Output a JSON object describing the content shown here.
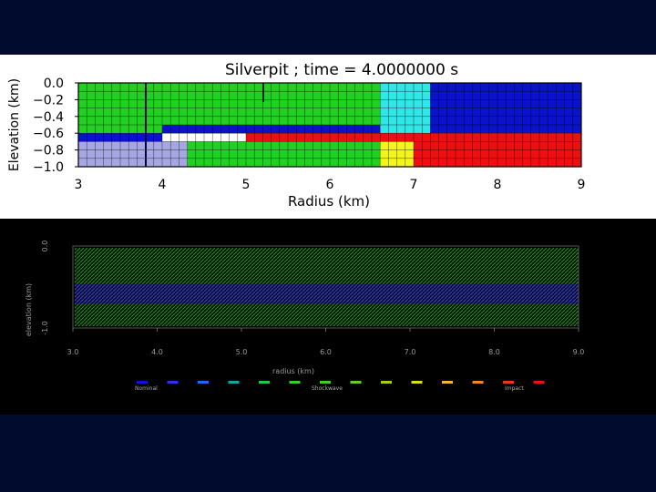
{
  "chart_data": [
    {
      "type": "heatmap",
      "title": "Silverpit ; time = 4.0000000 s",
      "xlabel": "Radius (km)",
      "ylabel": "Elevation (km)",
      "xlim": [
        3,
        9
      ],
      "ylim": [
        -1.0,
        0.0
      ],
      "x_ticks": [
        "3",
        "4",
        "5",
        "6",
        "7",
        "8",
        "9"
      ],
      "y_ticks": [
        "0.0",
        "−0.2",
        "−0.4",
        "−0.6",
        "−0.8",
        "−1.0"
      ],
      "grid": true,
      "colors": {
        "green": "#22d022",
        "blue": "#0a12cc",
        "red": "#ee1010",
        "lavender": "#a6a6e2",
        "cyan": "#30e6e6",
        "yellow": "#f4f41e"
      },
      "regions": [
        {
          "color": "green",
          "x": [
            3.0,
            6.6
          ],
          "y": [
            -0.6,
            0.0
          ]
        },
        {
          "color": "cyan",
          "x": [
            6.6,
            7.2
          ],
          "y": [
            -0.6,
            0.0
          ]
        },
        {
          "color": "blue",
          "x": [
            7.2,
            9.0
          ],
          "y": [
            -0.6,
            0.0
          ]
        },
        {
          "color": "blue",
          "x": [
            3.0,
            4.0
          ],
          "y": [
            -0.7,
            -0.6
          ]
        },
        {
          "color": "blue",
          "x": [
            4.0,
            6.6
          ],
          "y": [
            -0.6,
            -0.5
          ]
        },
        {
          "color": "red",
          "x": [
            5.0,
            9.0
          ],
          "y": [
            -0.7,
            -0.6
          ]
        },
        {
          "color": "lavender",
          "x": [
            3.0,
            4.3
          ],
          "y": [
            -1.0,
            -0.7
          ]
        },
        {
          "color": "green",
          "x": [
            4.3,
            6.6
          ],
          "y": [
            -1.0,
            -0.7
          ]
        },
        {
          "color": "yellow",
          "x": [
            6.6,
            7.0
          ],
          "y": [
            -1.0,
            -0.7
          ]
        },
        {
          "color": "red",
          "x": [
            7.0,
            9.0
          ],
          "y": [
            -1.0,
            -0.7
          ]
        }
      ]
    },
    {
      "type": "scatter",
      "xlabel": "radius (km)",
      "ylabel": "elevation (km)",
      "xlim": [
        3.0,
        9.0
      ],
      "ylim": [
        -1.0,
        0.0
      ],
      "x_ticks": [
        "3.0",
        "4.0",
        "5.0",
        "6.0",
        "7.0",
        "8.0",
        "9.0"
      ],
      "y_ticks": [
        "0.0",
        "-1.0"
      ],
      "colorbar": {
        "labels": [
          "Nominal",
          "Shockwave",
          "Impact"
        ],
        "colors": [
          "#1010e0",
          "#2f2fe8",
          "#2266ff",
          "#1aa0aa",
          "#22c844",
          "#33cc33",
          "#44cc22",
          "#66cc22",
          "#aacc22",
          "#dddd22",
          "#eebb22",
          "#ee8822",
          "#ee3322",
          "#ee1111"
        ]
      }
    }
  ]
}
